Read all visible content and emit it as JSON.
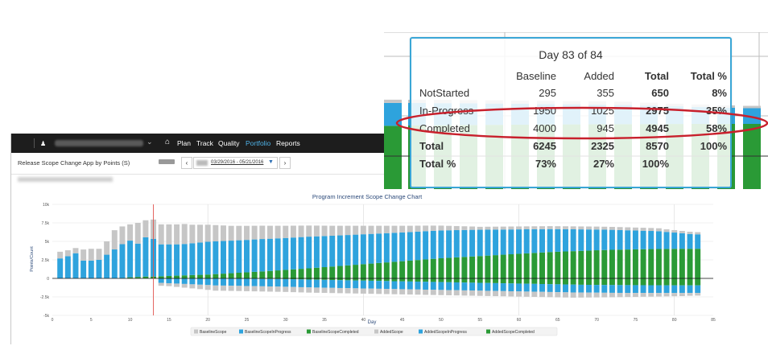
{
  "topnav": {
    "user_icon": "user-icon",
    "items": [
      "Plan",
      "Track",
      "Quality",
      "Portfolio",
      "Reports"
    ],
    "active": "Portfolio"
  },
  "subbar": {
    "title": "Release Scope Change App by Points (S)",
    "date_range": "03/29/2016 - 05/21/2016",
    "prev_label": "‹",
    "next_label": "›"
  },
  "chart_data": {
    "type": "bar",
    "title": "Program Increment Scope Change Chart",
    "xlabel": "Day",
    "ylabel": "Points/Count",
    "xlim": [
      0,
      85
    ],
    "ylim": [
      -5000,
      10000
    ],
    "x_ticks": [
      0,
      5,
      10,
      15,
      20,
      25,
      30,
      35,
      40,
      45,
      50,
      55,
      60,
      65,
      70,
      75,
      80,
      85
    ],
    "y_ticks": [
      {
        "value": 10000,
        "label": "10k"
      },
      {
        "value": 7500,
        "label": "7.5k"
      },
      {
        "value": 5000,
        "label": "5k"
      },
      {
        "value": 2500,
        "label": "2.5k"
      },
      {
        "value": 0,
        "label": "0"
      },
      {
        "value": -2500,
        "label": "-2.5k"
      },
      {
        "value": -5000,
        "label": "-5k"
      }
    ],
    "current_day_marker": 13,
    "legend": [
      "BaselineScope",
      "BaselineScopeInProgress",
      "BaselineScopeCompleted",
      "AddedScope",
      "AddedScopeInProgress",
      "AddedScopeCompleted"
    ],
    "legend_position": "bottom",
    "colors": {
      "BaselineScope": "#c6c6c6",
      "BaselineScopeInProgress": "#2ea3dd",
      "BaselineScopeCompleted": "#2a9a36",
      "AddedScope": "#c6c6c6",
      "AddedScopeInProgress": "#2ea3dd",
      "AddedScopeCompleted": "#2a9a36"
    },
    "days": [
      1,
      2,
      3,
      4,
      5,
      6,
      7,
      8,
      9,
      10,
      11,
      12,
      13,
      14,
      15,
      16,
      17,
      18,
      19,
      20,
      21,
      22,
      23,
      24,
      25,
      26,
      27,
      28,
      29,
      30,
      31,
      32,
      33,
      34,
      35,
      36,
      37,
      38,
      39,
      40,
      41,
      42,
      43,
      44,
      45,
      46,
      47,
      48,
      49,
      50,
      51,
      52,
      53,
      54,
      55,
      56,
      57,
      58,
      59,
      60,
      61,
      62,
      63,
      64,
      65,
      66,
      67,
      68,
      69,
      70,
      71,
      72,
      73,
      74,
      75,
      76,
      77,
      78,
      79,
      80,
      81,
      82,
      83
    ],
    "series": [
      {
        "name": "BaselineScopeCompleted",
        "values": [
          0,
          0,
          0,
          0,
          0,
          0,
          0,
          10,
          40,
          150,
          200,
          250,
          250,
          290,
          330,
          370,
          410,
          450,
          480,
          520,
          580,
          640,
          700,
          760,
          820,
          880,
          940,
          1010,
          1080,
          1150,
          1220,
          1290,
          1360,
          1440,
          1520,
          1600,
          1680,
          1760,
          1840,
          1920,
          2000,
          2080,
          2160,
          2240,
          2320,
          2400,
          2480,
          2560,
          2640,
          2720,
          2780,
          2840,
          2900,
          2960,
          3020,
          3080,
          3140,
          3200,
          3260,
          3320,
          3380,
          3440,
          3500,
          3560,
          3600,
          3640,
          3680,
          3720,
          3760,
          3800,
          3830,
          3860,
          3880,
          3900,
          3920,
          3940,
          3960,
          3970,
          3980,
          3990,
          4000,
          4000,
          4000
        ]
      },
      {
        "name": "BaselineScopeInProgress",
        "values": [
          2700,
          3000,
          3400,
          2400,
          2400,
          2500,
          3200,
          3900,
          4580,
          4950,
          4500,
          5300,
          5100,
          4310,
          4270,
          4230,
          4240,
          4300,
          4370,
          4430,
          4420,
          4410,
          4400,
          4390,
          4380,
          4380,
          4380,
          4350,
          4330,
          4310,
          4300,
          4290,
          4280,
          4240,
          4200,
          4160,
          4130,
          4100,
          4070,
          4040,
          4010,
          3980,
          3950,
          3920,
          3890,
          3860,
          3840,
          3820,
          3790,
          3760,
          3720,
          3680,
          3640,
          3600,
          3550,
          3500,
          3450,
          3400,
          3350,
          3300,
          3250,
          3200,
          3150,
          3100,
          3050,
          3000,
          2950,
          2900,
          2850,
          2800,
          2750,
          2700,
          2650,
          2600,
          2550,
          2500,
          2450,
          2400,
          2300,
          2200,
          2100,
          2000,
          1950
        ]
      },
      {
        "name": "BaselineScope",
        "values": [
          900,
          800,
          700,
          1500,
          1600,
          1500,
          1800,
          2600,
          2400,
          2200,
          2800,
          2300,
          2600,
          2700,
          2700,
          2700,
          2700,
          2500,
          2400,
          2300,
          2200,
          2100,
          2000,
          1950,
          1900,
          1850,
          1800,
          1750,
          1700,
          1650,
          1600,
          1550,
          1500,
          1450,
          1400,
          1350,
          1300,
          1250,
          1200,
          1150,
          1100,
          1050,
          1000,
          950,
          900,
          850,
          800,
          750,
          700,
          650,
          600,
          550,
          500,
          450,
          400,
          400,
          400,
          400,
          400,
          400,
          400,
          400,
          400,
          400,
          400,
          400,
          400,
          400,
          400,
          400,
          400,
          400,
          400,
          400,
          400,
          400,
          400,
          400,
          350,
          330,
          310,
          300,
          295
        ]
      },
      {
        "name": "AddedScopeCompleted",
        "values": [
          0,
          0,
          0,
          0,
          0,
          0,
          0,
          0,
          0,
          0,
          0,
          0,
          0,
          0,
          0,
          0,
          0,
          0,
          0,
          0,
          10,
          20,
          30,
          40,
          50,
          60,
          70,
          80,
          90,
          100,
          120,
          140,
          160,
          180,
          200,
          220,
          240,
          260,
          280,
          300,
          320,
          340,
          360,
          380,
          400,
          420,
          440,
          460,
          480,
          500,
          520,
          540,
          560,
          580,
          600,
          620,
          640,
          660,
          680,
          700,
          720,
          740,
          760,
          780,
          800,
          820,
          840,
          860,
          870,
          880,
          890,
          900,
          905,
          910,
          915,
          920,
          925,
          930,
          935,
          940,
          945,
          945,
          945
        ]
      },
      {
        "name": "AddedScopeInProgress",
        "values": [
          0,
          0,
          0,
          0,
          0,
          0,
          0,
          0,
          0,
          0,
          0,
          0,
          0,
          600,
          650,
          700,
          750,
          800,
          850,
          900,
          950,
          950,
          960,
          970,
          980,
          990,
          1000,
          1010,
          1020,
          1030,
          1040,
          1050,
          1060,
          1060,
          1060,
          1060,
          1060,
          1060,
          1060,
          1060,
          1060,
          1060,
          1060,
          1060,
          1060,
          1060,
          1060,
          1060,
          1060,
          1060,
          1060,
          1060,
          1060,
          1060,
          1060,
          1060,
          1060,
          1060,
          1060,
          1060,
          1060,
          1060,
          1060,
          1060,
          1060,
          1060,
          1060,
          1050,
          1050,
          1050,
          1050,
          1050,
          1050,
          1050,
          1050,
          1040,
          1040,
          1040,
          1035,
          1030,
          1030,
          1025,
          1025
        ]
      },
      {
        "name": "AddedScope",
        "values": [
          0,
          0,
          0,
          0,
          0,
          0,
          0,
          0,
          0,
          0,
          0,
          0,
          0,
          400,
          400,
          450,
          500,
          550,
          600,
          650,
          700,
          700,
          700,
          700,
          700,
          700,
          700,
          700,
          700,
          700,
          700,
          700,
          700,
          700,
          700,
          700,
          700,
          700,
          700,
          700,
          700,
          700,
          700,
          700,
          700,
          700,
          700,
          700,
          700,
          700,
          700,
          700,
          700,
          700,
          700,
          700,
          700,
          700,
          700,
          700,
          700,
          700,
          700,
          700,
          700,
          700,
          700,
          680,
          660,
          640,
          620,
          600,
          580,
          560,
          540,
          520,
          500,
          480,
          460,
          440,
          420,
          380,
          355
        ]
      }
    ]
  },
  "tooltip": {
    "title": "Day 83 of 84",
    "columns": [
      "Baseline",
      "Added",
      "Total",
      "Total %"
    ],
    "rows": [
      {
        "label": "NotStarted",
        "baseline": "295",
        "added": "355",
        "total": "650",
        "pct": "8%"
      },
      {
        "label": "In-Progress",
        "baseline": "1950",
        "added": "1025",
        "total": "2975",
        "pct": "35%"
      },
      {
        "label": "Completed",
        "baseline": "4000",
        "added": "945",
        "total": "4945",
        "pct": "58%"
      },
      {
        "label": "Total",
        "baseline": "6245",
        "added": "2325",
        "total": "8570",
        "pct": "100%"
      },
      {
        "label": "Total %",
        "baseline": "73%",
        "added": "27%",
        "total": "100%",
        "pct": ""
      }
    ]
  }
}
